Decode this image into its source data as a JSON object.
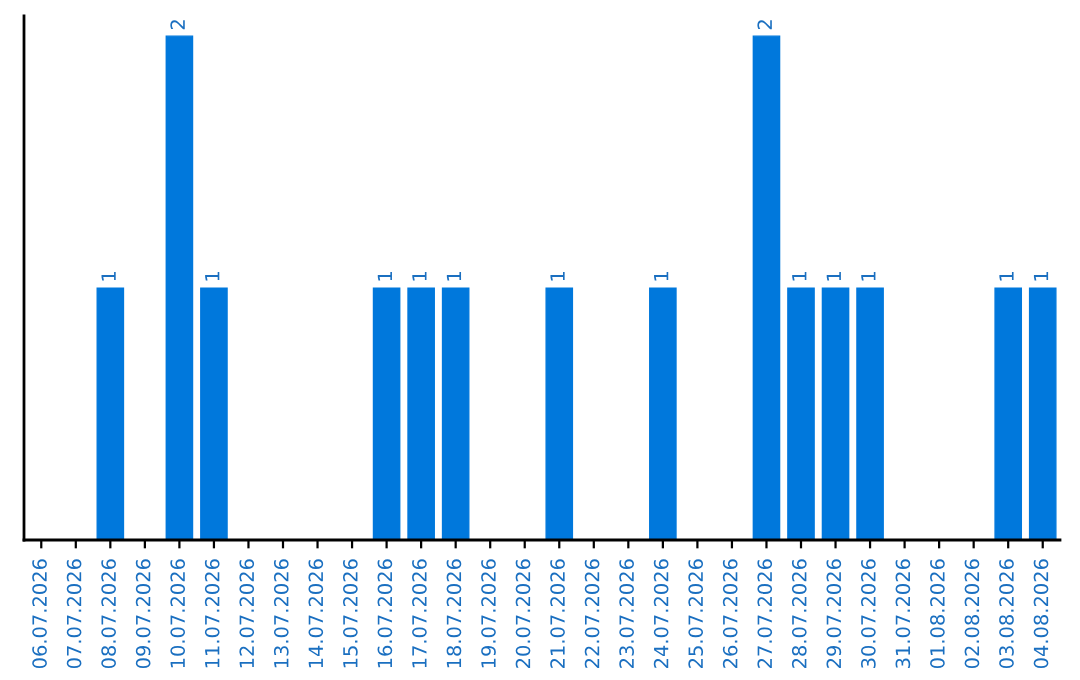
{
  "chart_data": {
    "type": "bar",
    "categories": [
      "06.07.2026",
      "07.07.2026",
      "08.07.2026",
      "09.07.2026",
      "10.07.2026",
      "11.07.2026",
      "12.07.2026",
      "13.07.2026",
      "14.07.2026",
      "15.07.2026",
      "16.07.2026",
      "17.07.2026",
      "18.07.2026",
      "19.07.2026",
      "20.07.2026",
      "21.07.2026",
      "22.07.2026",
      "23.07.2026",
      "24.07.2026",
      "25.07.2026",
      "26.07.2026",
      "27.07.2026",
      "28.07.2026",
      "29.07.2026",
      "30.07.2026",
      "31.07.2026",
      "01.08.2026",
      "02.08.2026",
      "03.08.2026",
      "04.08.2026"
    ],
    "values": [
      0,
      0,
      1,
      0,
      2,
      1,
      0,
      0,
      0,
      0,
      1,
      1,
      1,
      0,
      0,
      1,
      0,
      0,
      1,
      0,
      0,
      2,
      1,
      1,
      1,
      0,
      0,
      0,
      1,
      1
    ],
    "value_labels": [
      null,
      null,
      "1",
      null,
      "2",
      "1",
      null,
      null,
      null,
      null,
      "1",
      "1",
      "1",
      null,
      null,
      "1",
      null,
      null,
      "1",
      null,
      null,
      "2",
      "1",
      "1",
      "1",
      null,
      null,
      null,
      "1",
      "1"
    ],
    "color": "#0078dc",
    "ylim": [
      0,
      2.08
    ],
    "tick_labels": "x",
    "grid": false
  }
}
